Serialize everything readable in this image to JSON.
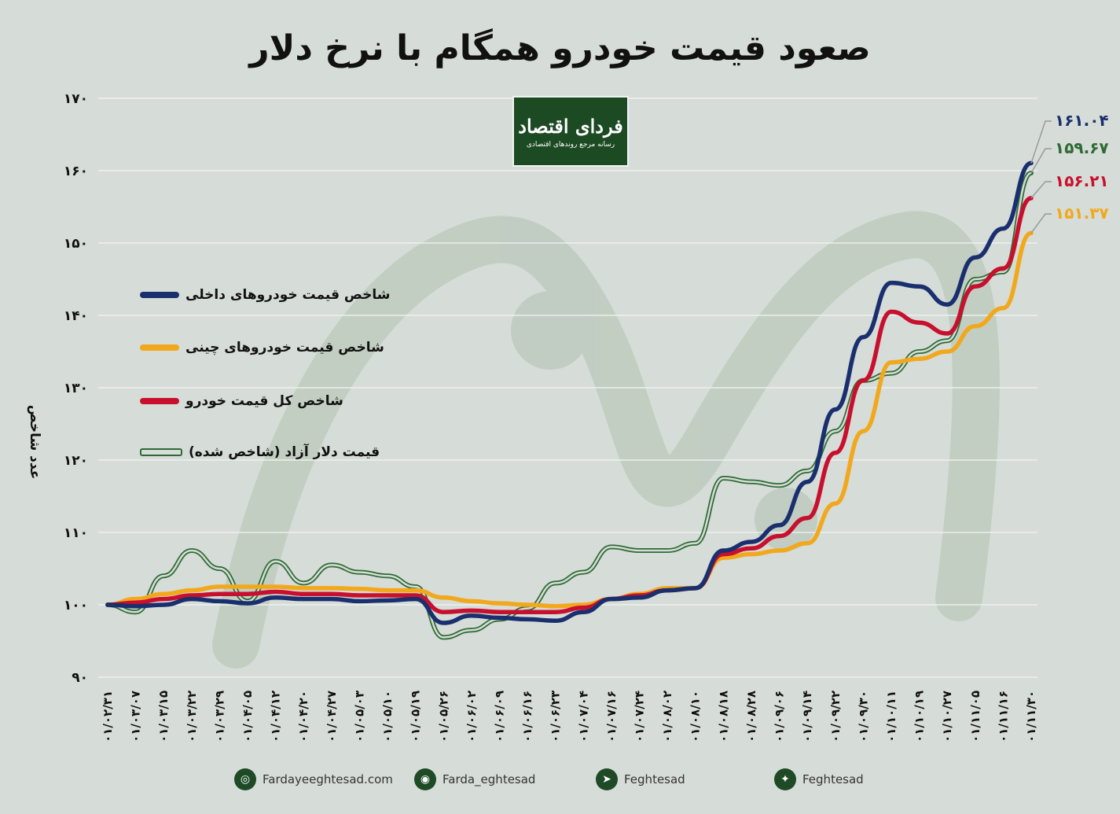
{
  "title": "صعود قیمت خودرو همگام با نرخ دلار",
  "logo": {
    "brand": "فردای اقتصاد",
    "tagline": "رسانه مرجع روندهای اقتصادی"
  },
  "ylabel": "عدد شاخص",
  "legend": [
    {
      "label": "شاخص قیمت خودروهای داخلی",
      "color": "#1a2f6e",
      "style": "solid"
    },
    {
      "label": "شاخص قیمت خودروهای چینی",
      "color": "#f2a81d",
      "style": "solid"
    },
    {
      "label": "شاخص کل قیمت خودرو",
      "color": "#c8102e",
      "style": "solid"
    },
    {
      "label": "قیمت دلار آزاد (شاخص شده)",
      "color": "#2e6b34",
      "style": "outlined"
    }
  ],
  "end_labels": [
    "۱۶۱.۰۴",
    "۱۵۹.۶۷",
    "۱۵۶.۲۱",
    "۱۵۱.۳۷"
  ],
  "footer": [
    {
      "icon": "globe-icon",
      "glyph": "◎",
      "text": "Fardayeeghtesad.com"
    },
    {
      "icon": "instagram-icon",
      "glyph": "◉",
      "text": "Farda_eghtesad"
    },
    {
      "icon": "telegram-icon",
      "glyph": "➤",
      "text": "Feghtesad"
    },
    {
      "icon": "twitter-icon",
      "glyph": "✦",
      "text": "Feghtesad"
    }
  ],
  "chart_data": {
    "type": "line",
    "ylim": [
      90,
      170
    ],
    "yticks": [
      "۹۰",
      "۱۰۰",
      "۱۱۰",
      "۱۲۰",
      "۱۳۰",
      "۱۴۰",
      "۱۵۰",
      "۱۶۰",
      "۱۷۰"
    ],
    "ytick_values": [
      90,
      100,
      110,
      120,
      130,
      140,
      150,
      160,
      170
    ],
    "x": [
      "۰۱/۰۲/۳۱",
      "۰۱/۰۳/۰۷",
      "۰۱/۰۳/۱۵",
      "۰۱/۰۳/۲۲",
      "۰۱/۰۳/۲۹",
      "۰۱/۰۴/۰۵",
      "۰۱/۰۴/۱۲",
      "۰۱/۰۴/۲۰",
      "۰۱/۰۴/۲۷",
      "۰۱/۰۵/۰۳",
      "۰۱/۰۵/۱۰",
      "۰۱/۰۵/۱۹",
      "۰۱/۰۵/۲۶",
      "۰۱/۰۶/۰۲",
      "۰۱/۰۶/۰۹",
      "۰۱/۰۶/۱۶",
      "۰۱/۰۶/۲۳",
      "۰۱/۰۷/۰۴",
      "۰۱/۰۷/۱۶",
      "۰۱/۰۷/۲۴",
      "۰۱/۰۸/۰۲",
      "۰۱/۰۸/۱۰",
      "۰۱/۰۸/۱۸",
      "۰۱/۰۸/۲۸",
      "۰۱/۰۹/۰۶",
      "۰۱/۰۹/۱۴",
      "۰۱/۰۹/۲۲",
      "۰۱/۰۹/۳۰",
      "۰۱/۱۰/۱۱",
      "۰۱/۱۰/۱۹",
      "۰۱/۱۰/۲۷",
      "۰۱/۱۱/۰۵",
      "۰۱/۱۱/۱۶",
      "۰۱/۱۱/۳۰"
    ],
    "series": [
      {
        "name": "شاخص قیمت خودروهای داخلی",
        "color": "#1a2f6e",
        "values": [
          100,
          99.8,
          100,
          100.8,
          100.5,
          100.2,
          101,
          100.8,
          100.8,
          100.5,
          100.6,
          100.8,
          97.5,
          98.5,
          98.2,
          98,
          97.8,
          99,
          100.8,
          101,
          102,
          102.3,
          107.5,
          108.7,
          111,
          117,
          127,
          137,
          144.5,
          144,
          141.5,
          148,
          152,
          161.04
        ]
      },
      {
        "name": "شاخص قیمت خودروهای چینی",
        "color": "#f2a81d",
        "values": [
          100,
          100.8,
          101.5,
          102,
          102.5,
          102.5,
          102.5,
          102.3,
          102.3,
          102.2,
          102,
          102,
          101,
          100.5,
          100.2,
          100,
          99.8,
          100,
          100.8,
          101.5,
          102.3,
          102.3,
          106.5,
          107,
          107.5,
          108.5,
          114,
          124,
          133.5,
          134,
          135,
          138.5,
          141,
          151.37
        ]
      },
      {
        "name": "شاخص کل قیمت خودرو",
        "color": "#c8102e",
        "values": [
          100,
          100.3,
          100.8,
          101.3,
          101.5,
          101.5,
          101.8,
          101.5,
          101.5,
          101.3,
          101.3,
          101.3,
          99,
          99.2,
          99,
          99,
          99,
          99.6,
          100.8,
          101.3,
          102,
          102.3,
          107,
          107.8,
          109.5,
          112,
          121,
          131,
          140.5,
          139,
          137.5,
          144,
          146.5,
          156.21
        ]
      },
      {
        "name": "قیمت دلار آزاد (شاخص شده)",
        "color": "#2e6b34",
        "values": [
          100,
          99,
          104,
          107.5,
          105,
          100.5,
          106,
          103,
          105.5,
          104.5,
          104,
          102.5,
          95.5,
          96.5,
          98,
          99.5,
          103,
          104.5,
          108,
          107.5,
          107.5,
          108.5,
          117.5,
          117,
          116.5,
          118.5,
          124,
          131,
          132,
          135,
          136.5,
          145,
          146,
          159.67
        ]
      }
    ]
  }
}
